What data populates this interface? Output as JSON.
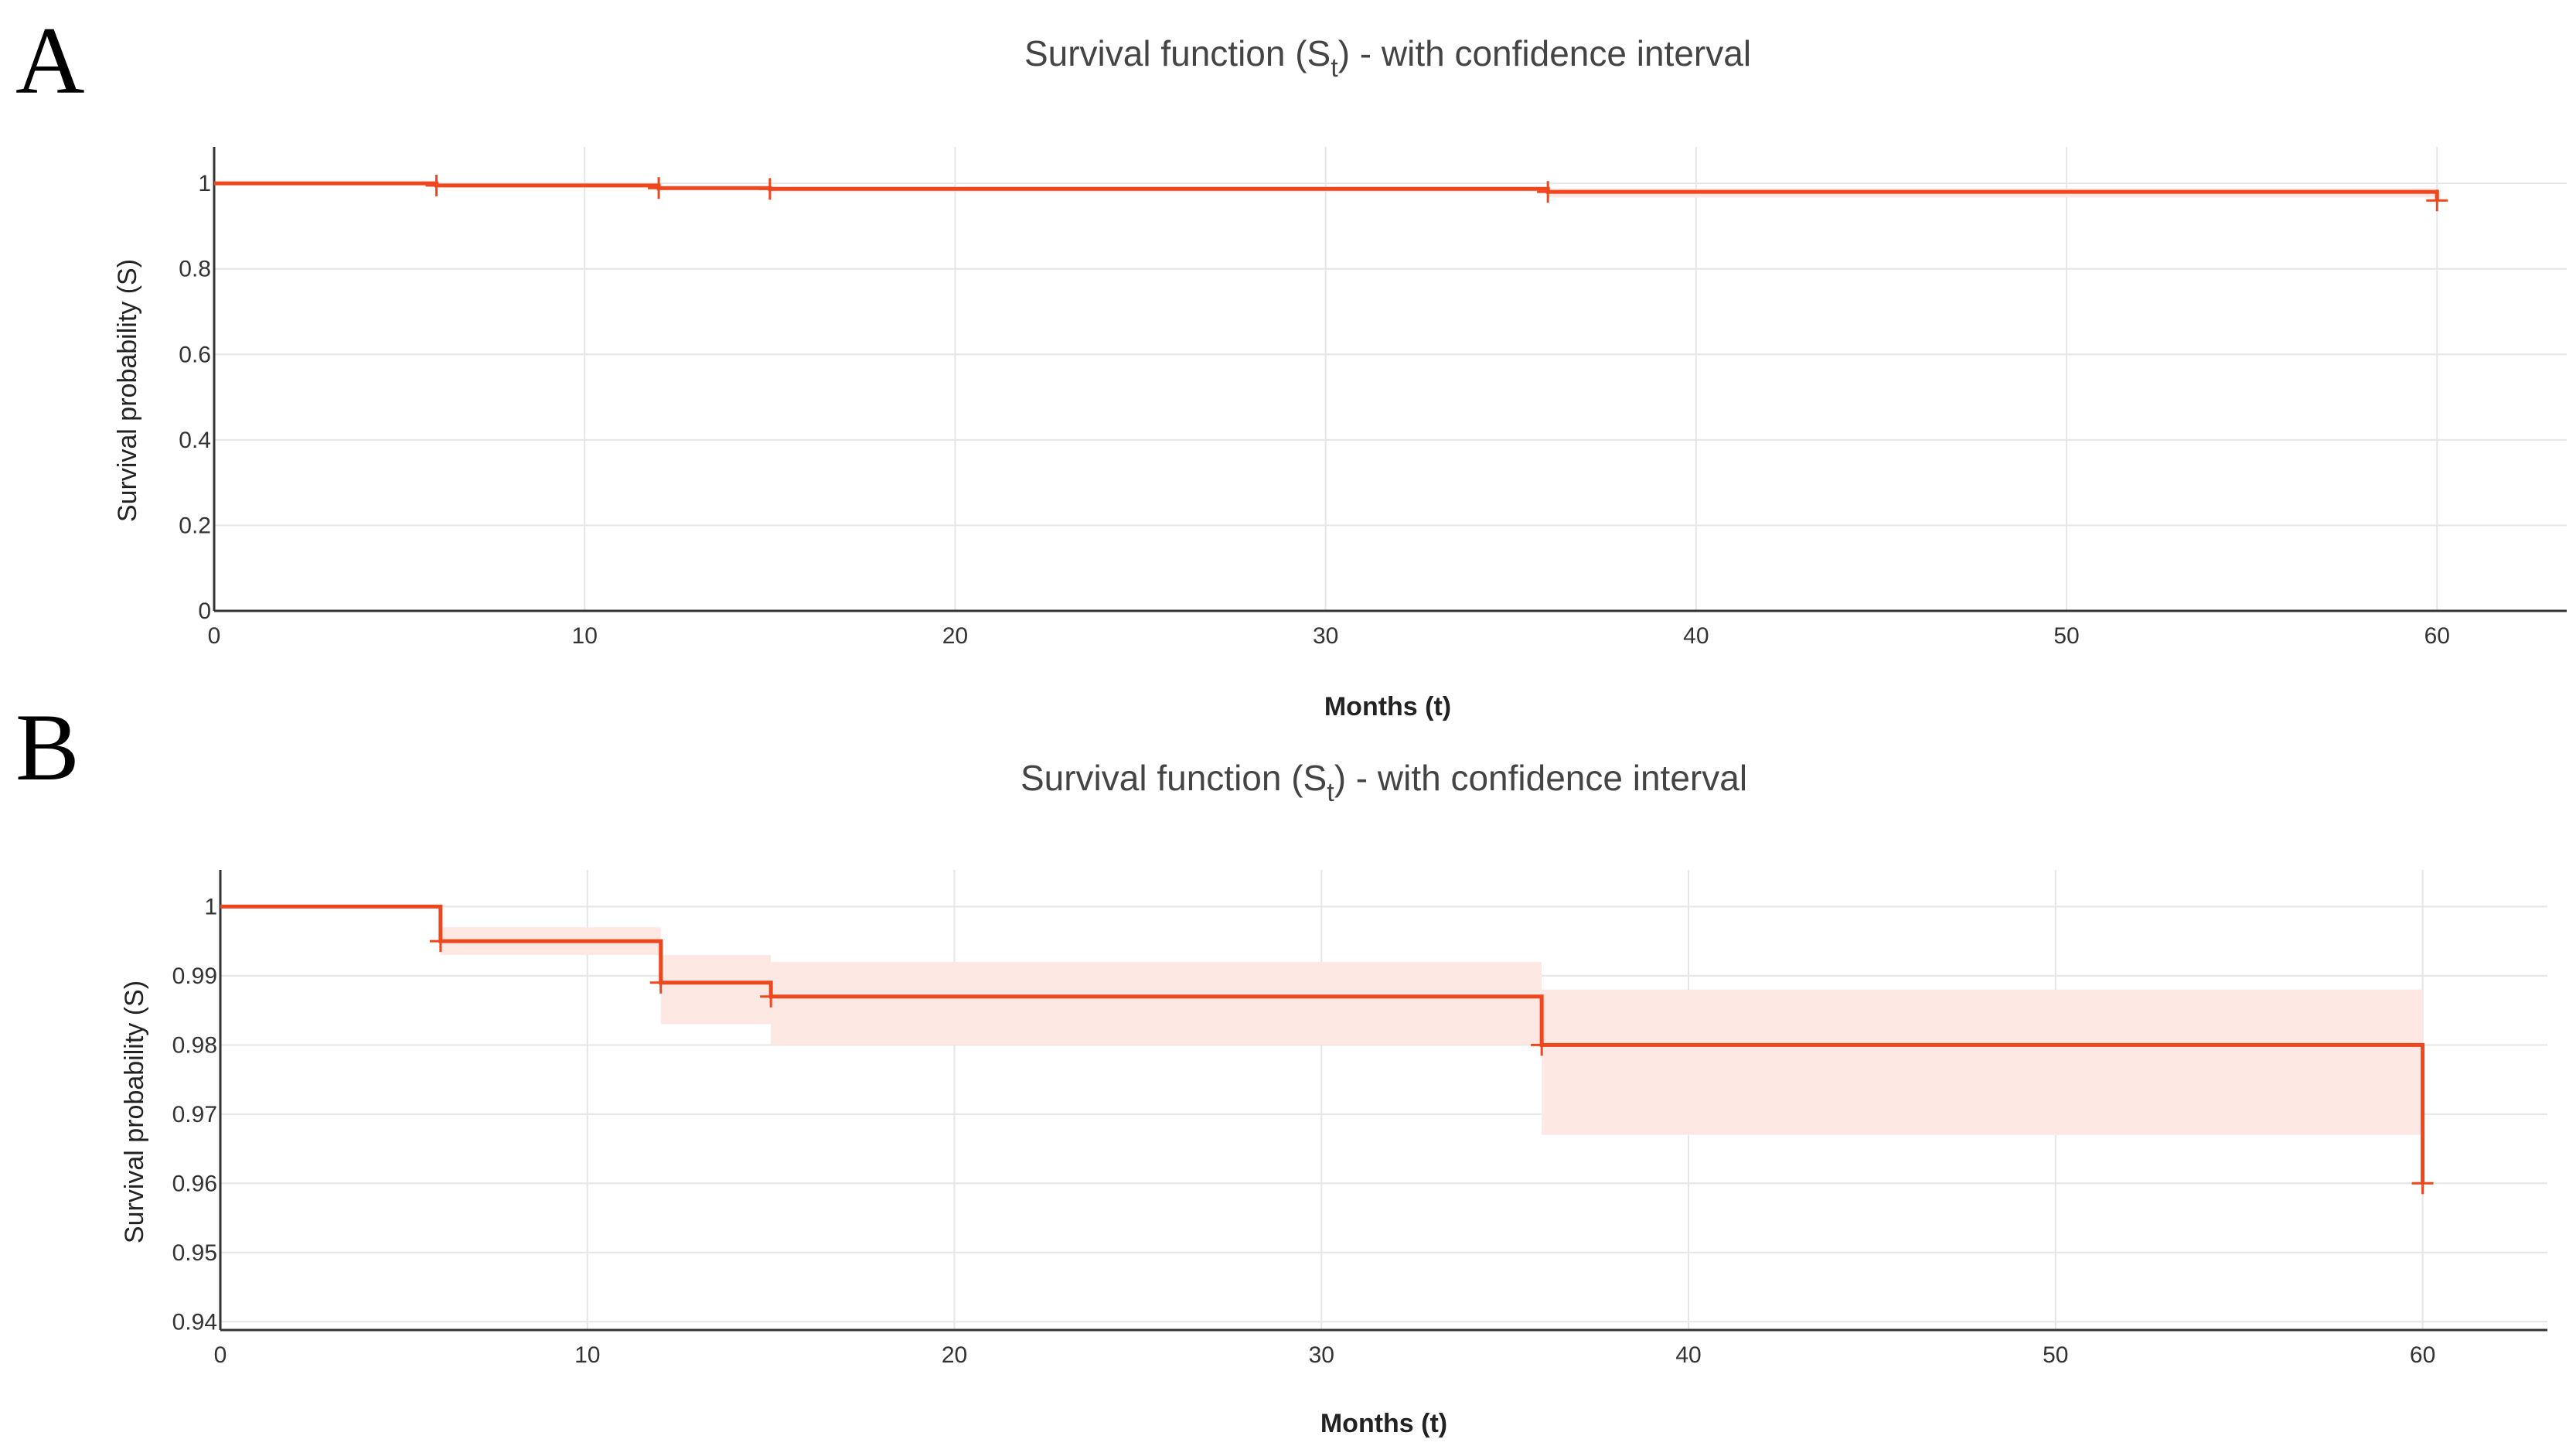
{
  "panels": [
    {
      "letter": "A",
      "title_main": "Survival function (S",
      "title_sub": "t",
      "title_rest": ") - with confidence interval"
    },
    {
      "letter": "B",
      "title_main": "Survival function (S",
      "title_sub": "t",
      "title_rest": ") - with confidence interval"
    }
  ],
  "colors": {
    "line": "#f0461e",
    "band": "#fde8e4",
    "grid": "#e6e6e6",
    "axis": "#333333"
  },
  "chart_data": [
    {
      "type": "line",
      "title": "Survival function (St) - with confidence interval",
      "xlabel": "Months (t)",
      "ylabel": "Survival probability (S)",
      "xlim": [
        0,
        63.5
      ],
      "ylim": [
        0,
        1.04
      ],
      "xticks": [
        0,
        10,
        20,
        30,
        40,
        50,
        60
      ],
      "xtick_labels": [
        "0",
        "10",
        "20",
        "30",
        "40",
        "50",
        "60"
      ],
      "yticks": [
        0,
        0.2,
        0.4,
        0.6,
        0.8,
        1
      ],
      "ytick_labels": [
        "0",
        "0.2",
        "0.4",
        "0.6",
        "0.8",
        "1"
      ],
      "grid": true,
      "series": [
        {
          "step_x": [
            0,
            6,
            12,
            15,
            36,
            60
          ],
          "step_y": [
            1,
            0.995,
            0.989,
            0.987,
            0.98,
            0.96
          ],
          "ci_lower": [
            1,
            0.993,
            0.983,
            0.98,
            0.967
          ],
          "ci_upper": [
            1,
            0.997,
            0.993,
            0.992,
            0.988
          ],
          "censored_x": [
            6,
            12,
            15,
            36,
            60
          ],
          "censored_y": [
            0.995,
            0.989,
            0.987,
            0.98,
            0.96
          ]
        }
      ]
    },
    {
      "type": "line",
      "title": "Survival function (St) - with confidence interval",
      "xlabel": "Months (t)",
      "ylabel": "Survival probability (S)",
      "xlim": [
        0,
        63.4
      ],
      "ylim": [
        0.9388,
        1.0025
      ],
      "xticks": [
        0,
        10,
        20,
        30,
        40,
        50,
        60
      ],
      "xtick_labels": [
        "0",
        "10",
        "20",
        "30",
        "40",
        "50",
        "60"
      ],
      "yticks": [
        0.94,
        0.95,
        0.96,
        0.97,
        0.98,
        0.99,
        1
      ],
      "ytick_labels": [
        "0.94",
        "0.95",
        "0.96",
        "0.97",
        "0.98",
        "0.99",
        "1"
      ],
      "grid": true,
      "series": [
        {
          "step_x": [
            0,
            6,
            12,
            15,
            36,
            60
          ],
          "step_y": [
            1,
            0.995,
            0.989,
            0.987,
            0.98,
            0.96
          ],
          "ci_lower": [
            1,
            0.993,
            0.983,
            0.98,
            0.967
          ],
          "ci_upper": [
            1,
            0.997,
            0.993,
            0.992,
            0.988
          ],
          "censored_x": [
            6,
            12,
            15,
            36,
            60
          ],
          "censored_y": [
            0.995,
            0.989,
            0.987,
            0.98,
            0.96
          ]
        }
      ]
    }
  ]
}
